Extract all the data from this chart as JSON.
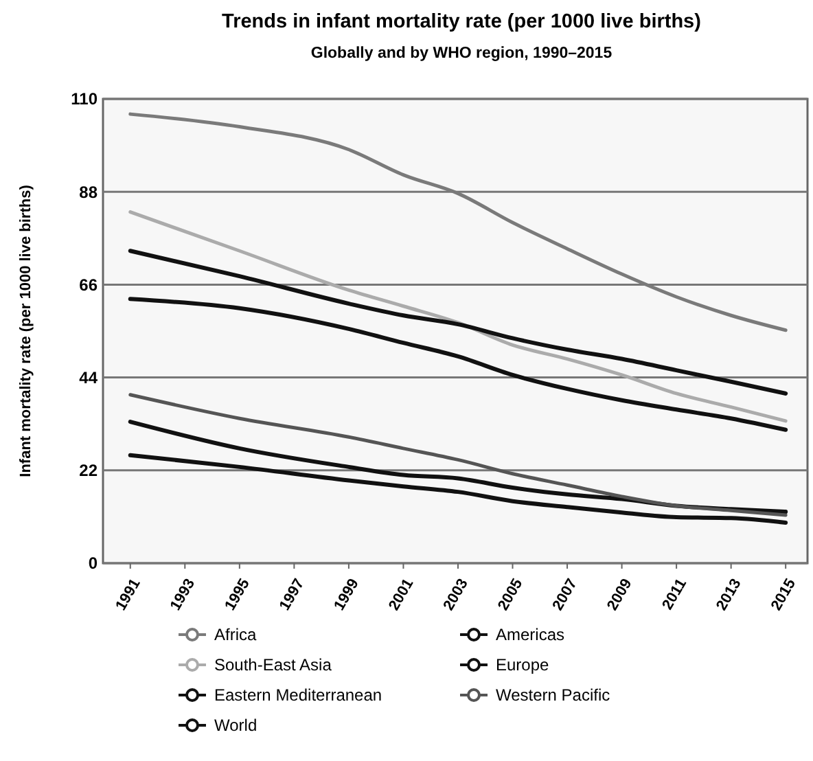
{
  "chart_data": {
    "type": "line",
    "title": "Trends in infant mortality rate (per 1000 live births)",
    "subtitle": "Globally and by WHO region, 1990–2015",
    "ylabel": "Infant mortality rate (per 1000 live births)",
    "x": [
      1991,
      1995,
      1999,
      2001,
      2003,
      2005,
      2007,
      2009,
      2011,
      2013,
      2015
    ],
    "xlim": [
      1990,
      2015.8
    ],
    "xticks": [
      1991,
      1993,
      1995,
      1997,
      1999,
      2001,
      2003,
      2005,
      2007,
      2009,
      2011,
      2013,
      2015
    ],
    "ylim": [
      0,
      110
    ],
    "yticks": [
      0,
      22,
      44,
      66,
      88,
      110
    ],
    "grid": "y",
    "legend": "bottom",
    "series": [
      {
        "name": "Africa",
        "color": "#7a7a7a",
        "values": [
          106.4,
          103.4,
          98,
          92,
          87.6,
          80.7,
          74.5,
          68.5,
          63.1,
          58.7,
          55.2
        ]
      },
      {
        "name": "South-East Asia",
        "color": "#ababab",
        "values": [
          83.2,
          74,
          64.7,
          60.9,
          57,
          51.7,
          48.4,
          44.6,
          40.2,
          37,
          33.7
        ]
      },
      {
        "name": "Eastern Mediterranean",
        "color": "#111111",
        "values": [
          74,
          68,
          61.5,
          58.7,
          56.6,
          53.3,
          50.6,
          48.4,
          45.7,
          43,
          40.2
        ]
      },
      {
        "name": "World",
        "color": "#111111",
        "values": [
          62.6,
          60.4,
          55.5,
          52.2,
          49,
          44.6,
          41.3,
          38.6,
          36.4,
          34.3,
          31.6
        ]
      },
      {
        "name": "Americas",
        "color": "#111111",
        "values": [
          33.5,
          27.2,
          22.8,
          20.9,
          20.1,
          17.9,
          16.3,
          15.2,
          13.6,
          12.8,
          12.2
        ]
      },
      {
        "name": "Europe",
        "color": "#111111",
        "values": [
          25.6,
          22.8,
          19.6,
          18.2,
          16.9,
          14.7,
          13.3,
          12,
          10.9,
          10.7,
          9.6
        ]
      },
      {
        "name": "Western Pacific",
        "color": "#555555",
        "values": [
          39.9,
          34.3,
          29.9,
          27.2,
          24.5,
          21.2,
          18.5,
          15.8,
          13.6,
          12.5,
          11.4
        ]
      }
    ]
  }
}
